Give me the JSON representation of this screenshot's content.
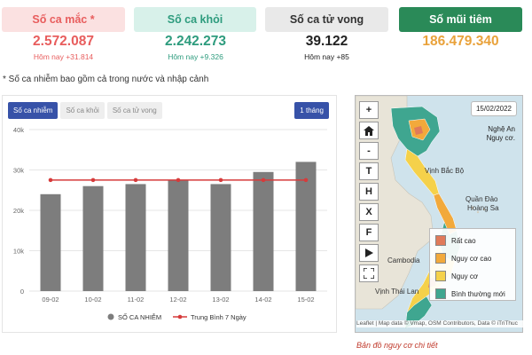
{
  "stats": [
    {
      "title": "Số ca mắc *",
      "value": "2.572.087",
      "sub": "Hôm nay +31.814"
    },
    {
      "title": "Số ca khỏi",
      "value": "2.242.273",
      "sub": "Hôm nay +9.326"
    },
    {
      "title": "Số ca tử vong",
      "value": "39.122",
      "sub": "Hôm nay +85"
    },
    {
      "title": "Số mũi tiêm",
      "value": "186.479.340"
    }
  ],
  "note": "* Số ca nhiễm bao gồm cả trong nước và nhập cảnh",
  "chart_panel": {
    "tabs": [
      "Số ca nhiễm",
      "Số ca khỏi",
      "Số ca tử vong"
    ],
    "period": "1 tháng"
  },
  "chart_data": {
    "type": "bar",
    "categories": [
      "09-02",
      "10-02",
      "11-02",
      "12-02",
      "13-02",
      "14-02",
      "15-02"
    ],
    "series": [
      {
        "name": "SỐ CA NHIỄM",
        "type": "bar",
        "color": "#7d7d7d",
        "values": [
          24000,
          26000,
          26500,
          27500,
          26500,
          29500,
          32000
        ]
      },
      {
        "name": "Trung Bình 7 Ngày",
        "type": "line",
        "color": "#d63b3b",
        "values": [
          27500,
          27500,
          27500,
          27500,
          27500,
          27500,
          27500
        ]
      }
    ],
    "yticks": [
      "0",
      "10k",
      "20k",
      "30k",
      "40k"
    ],
    "ylim": [
      0,
      40000
    ],
    "grid": true,
    "legend": "bottom"
  },
  "map": {
    "date": "15/02/2022",
    "province_name": "Nghệ An",
    "province_level": "Nguy cơ.",
    "tools": [
      "+",
      "home",
      "-",
      "T",
      "H",
      "X",
      "F",
      "play",
      "fullscreen"
    ],
    "labels": {
      "gulf": "Vịnh Bắc Bộ",
      "paracel_1": "Quần Đảo",
      "paracel_2": "Hoàng Sa",
      "cambodia": "Cambodia",
      "gulf_thailand": "Vịnh Thái Lan"
    },
    "legend": [
      {
        "label": "Rất cao",
        "color": "#e07a5a"
      },
      {
        "label": "Nguy cơ cao",
        "color": "#f2a93b"
      },
      {
        "label": "Nguy cơ",
        "color": "#f5d14a"
      },
      {
        "label": "Bình thường mới",
        "color": "#3fa690"
      }
    ],
    "attribution": "Leaflet | Map data © Vmap, OSM Contributors, Data © iTriThuc",
    "caption": "Bản đồ nguy cơ chi tiết"
  }
}
